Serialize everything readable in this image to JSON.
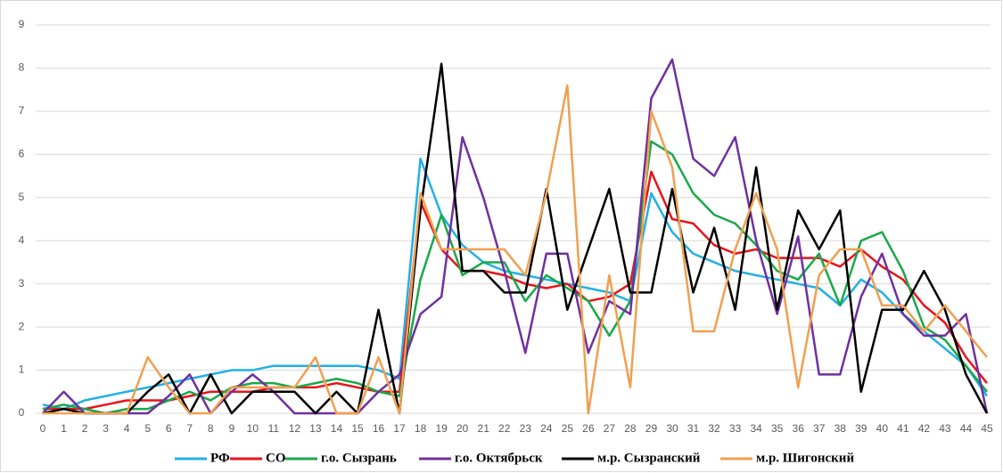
{
  "chart_data": {
    "type": "line",
    "x": [
      0,
      1,
      2,
      3,
      4,
      5,
      6,
      7,
      8,
      9,
      10,
      11,
      12,
      13,
      14,
      15,
      16,
      17,
      18,
      19,
      20,
      21,
      22,
      23,
      24,
      25,
      26,
      27,
      28,
      29,
      30,
      31,
      32,
      33,
      34,
      35,
      36,
      37,
      38,
      39,
      40,
      41,
      42,
      43,
      44,
      45
    ],
    "xlim": [
      0,
      45
    ],
    "ylim": [
      0,
      9
    ],
    "yticks": [
      0,
      1,
      2,
      3,
      4,
      5,
      6,
      7,
      8,
      9
    ],
    "grid": true,
    "legend": "bottom",
    "series": [
      {
        "name": "РФ",
        "color": "#22b0e6",
        "values": [
          0.2,
          0.1,
          0.3,
          0.4,
          0.5,
          0.6,
          0.7,
          0.8,
          0.9,
          1.0,
          1.0,
          1.1,
          1.1,
          1.1,
          1.1,
          1.1,
          1.0,
          0.8,
          5.9,
          4.6,
          3.9,
          3.5,
          3.3,
          3.2,
          3.1,
          3.0,
          2.9,
          2.8,
          2.6,
          5.1,
          4.2,
          3.7,
          3.5,
          3.3,
          3.2,
          3.1,
          3.0,
          2.9,
          2.5,
          3.1,
          2.8,
          2.3,
          1.9,
          1.5,
          1.1,
          0.4
        ]
      },
      {
        "name": "СО",
        "color": "#e8141b",
        "values": [
          0.1,
          0.1,
          0.1,
          0.2,
          0.3,
          0.3,
          0.3,
          0.4,
          0.5,
          0.5,
          0.5,
          0.6,
          0.6,
          0.6,
          0.7,
          0.6,
          0.5,
          0.5,
          4.9,
          3.8,
          3.3,
          3.3,
          3.2,
          3.0,
          2.9,
          3.0,
          2.6,
          2.7,
          3.0,
          5.6,
          4.5,
          4.4,
          3.9,
          3.7,
          3.8,
          3.6,
          3.6,
          3.6,
          3.4,
          3.8,
          3.4,
          3.1,
          2.5,
          2.1,
          1.3,
          0.7
        ]
      },
      {
        "name": "г.о. Сызрань",
        "color": "#1aa84a",
        "values": [
          0.1,
          0.2,
          0.1,
          0.0,
          0.1,
          0.1,
          0.3,
          0.5,
          0.3,
          0.6,
          0.7,
          0.7,
          0.6,
          0.7,
          0.8,
          0.7,
          0.5,
          0.4,
          3.1,
          4.6,
          3.2,
          3.5,
          3.5,
          2.6,
          3.2,
          2.9,
          2.6,
          1.8,
          2.6,
          6.3,
          6.0,
          5.1,
          4.6,
          4.4,
          3.9,
          3.3,
          3.1,
          3.7,
          2.5,
          4.0,
          4.2,
          3.3,
          2.0,
          1.7,
          1.1,
          0.5
        ]
      },
      {
        "name": "г.о. Октябрьск",
        "color": "#7030a0",
        "values": [
          0.0,
          0.5,
          0.0,
          0.0,
          0.0,
          0.0,
          0.4,
          0.9,
          0.0,
          0.5,
          0.9,
          0.5,
          0.0,
          0.0,
          0.0,
          0.0,
          0.5,
          0.9,
          2.3,
          2.7,
          6.4,
          5.0,
          3.3,
          1.4,
          3.7,
          3.7,
          1.4,
          2.6,
          2.3,
          7.3,
          8.2,
          5.9,
          5.5,
          6.4,
          4.0,
          2.3,
          4.1,
          0.9,
          0.9,
          2.7,
          3.7,
          2.3,
          1.8,
          1.8,
          2.3,
          0.0
        ]
      },
      {
        "name": "м.р. Сызранский",
        "color": "#000000",
        "values": [
          0.0,
          0.1,
          0.0,
          0.0,
          0.0,
          0.5,
          0.9,
          0.0,
          0.9,
          0.0,
          0.5,
          0.5,
          0.5,
          0.0,
          0.5,
          0.0,
          2.4,
          0.0,
          4.7,
          8.1,
          3.3,
          3.3,
          2.8,
          2.8,
          5.2,
          2.4,
          3.8,
          5.2,
          2.8,
          2.8,
          5.2,
          2.8,
          4.3,
          2.4,
          5.7,
          2.4,
          4.7,
          3.8,
          4.7,
          0.5,
          2.4,
          2.4,
          3.3,
          2.4,
          0.9,
          0.0
        ]
      },
      {
        "name": "м.р. Шигонский",
        "color": "#f0a050",
        "values": [
          0.0,
          0.0,
          0.0,
          0.0,
          0.0,
          1.3,
          0.6,
          0.0,
          0.0,
          0.6,
          0.6,
          0.6,
          0.6,
          1.3,
          0.0,
          0.0,
          1.3,
          0.0,
          5.1,
          3.8,
          3.8,
          3.8,
          3.8,
          3.2,
          5.1,
          7.6,
          0.0,
          3.2,
          0.6,
          7.0,
          5.7,
          1.9,
          1.9,
          3.8,
          5.1,
          3.8,
          0.6,
          3.2,
          3.8,
          3.8,
          2.5,
          2.5,
          1.9,
          2.5,
          1.9,
          1.3
        ]
      }
    ]
  }
}
